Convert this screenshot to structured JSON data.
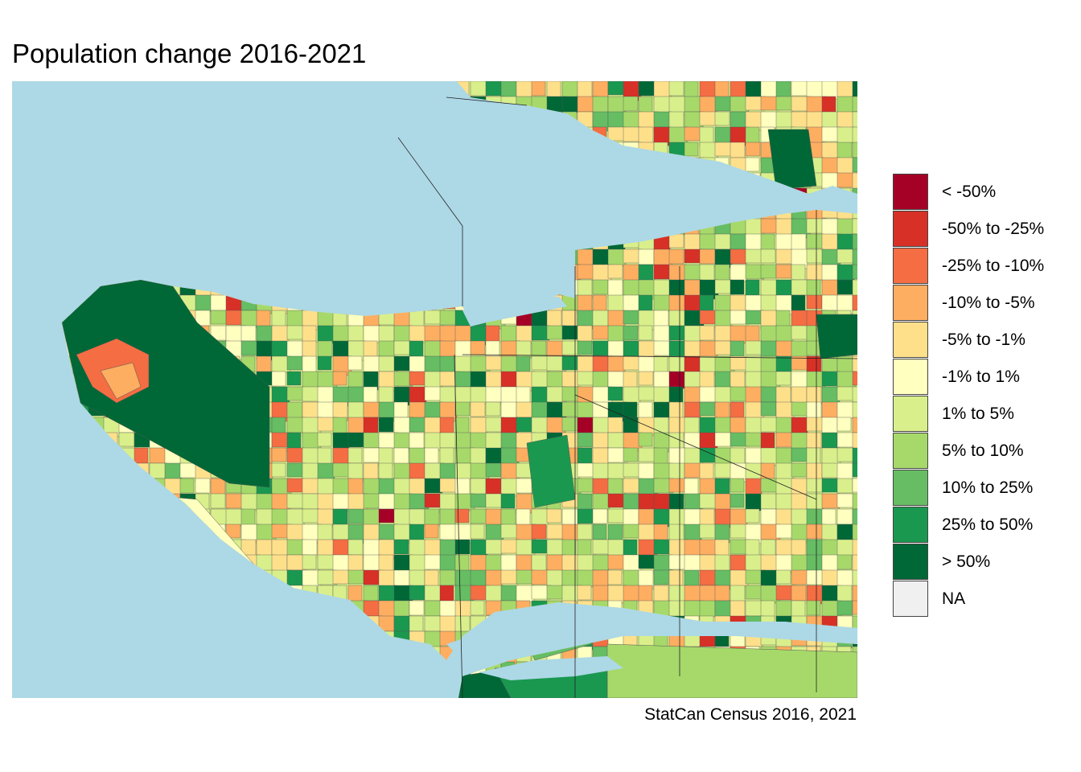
{
  "title": "Population change 2016-2021",
  "caption": "StatCan Census 2016, 2021",
  "colors": {
    "water": "#add8e6",
    "na": "#f0f0f0",
    "boundary": "#333333"
  },
  "legend": [
    {
      "label": "< -50%",
      "color": "#a50026"
    },
    {
      "label": "-50% to -25%",
      "color": "#d73027"
    },
    {
      "label": "-25% to -10%",
      "color": "#f46d43"
    },
    {
      "label": "-10% to -5%",
      "color": "#fdae61"
    },
    {
      "label": "-5% to -1%",
      "color": "#fee08b"
    },
    {
      "label": "-1% to 1%",
      "color": "#ffffbf"
    },
    {
      "label": "1% to 5%",
      "color": "#d9ef8b"
    },
    {
      "label": "5% to 10%",
      "color": "#a6d96a"
    },
    {
      "label": "10% to 25%",
      "color": "#66bd63"
    },
    {
      "label": "25% to 50%",
      "color": "#1a9850"
    },
    {
      "label": "> 50%",
      "color": "#006837"
    },
    {
      "label": "NA",
      "color": "#f0f0f0"
    }
  ]
}
